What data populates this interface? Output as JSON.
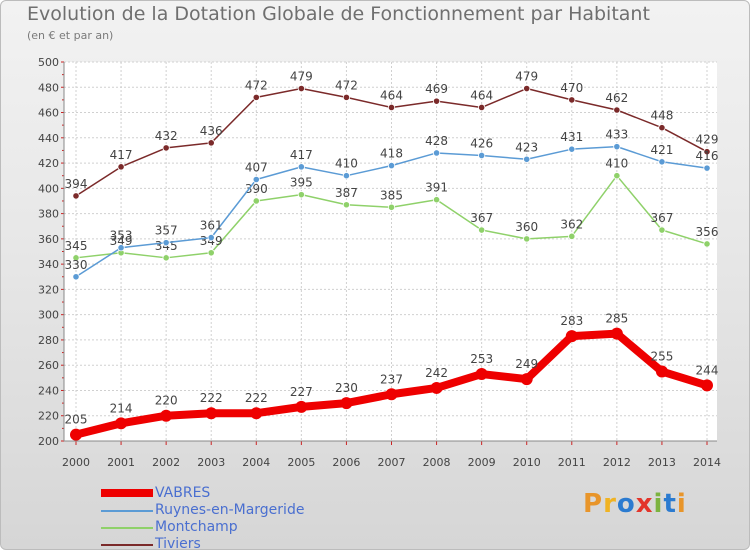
{
  "title": "Evolution de la Dotation Globale de Fonctionnement par Habitant",
  "subtitle": "(en € et par an)",
  "logo": {
    "text": "Proxiti",
    "colors": [
      "#e8952a",
      "#f0b323",
      "#2b7bd0",
      "#e3352b",
      "#7cb340",
      "#2b7bd0",
      "#e8952a"
    ]
  },
  "chart_data": {
    "type": "line",
    "title": "Evolution de la Dotation Globale de Fonctionnement par Habitant",
    "subtitle": "(en € et par an)",
    "xlabel": "",
    "ylabel": "",
    "ylim": [
      200,
      500
    ],
    "y_ticks": [
      200,
      220,
      240,
      260,
      280,
      300,
      320,
      340,
      360,
      380,
      400,
      420,
      440,
      460,
      480,
      500
    ],
    "categories": [
      "2000",
      "2001",
      "2002",
      "2003",
      "2004",
      "2005",
      "2006",
      "2007",
      "2008",
      "2009",
      "2010",
      "2011",
      "2012",
      "2013",
      "2014"
    ],
    "series": [
      {
        "name": "Tiviers",
        "color": "#7b2a2a",
        "values": [
          394,
          417,
          432,
          436,
          472,
          479,
          472,
          464,
          469,
          464,
          479,
          470,
          462,
          448,
          429
        ]
      },
      {
        "name": "Montchamp",
        "color": "#8fd16a",
        "values": [
          345,
          349,
          345,
          349,
          390,
          395,
          387,
          385,
          391,
          367,
          360,
          362,
          410,
          367,
          356
        ]
      },
      {
        "name": "Ruynes-en-Margeride",
        "color": "#5b9bd5",
        "values": [
          330,
          353,
          357,
          361,
          407,
          417,
          410,
          418,
          428,
          426,
          423,
          431,
          433,
          421,
          416
        ]
      },
      {
        "name": "VABRES",
        "color": "#ee0000",
        "values": [
          205,
          214,
          220,
          222,
          222,
          227,
          230,
          237,
          242,
          253,
          249,
          283,
          285,
          255,
          244
        ]
      }
    ],
    "legend": [
      "VABRES",
      "Ruynes-en-Margeride",
      "Montchamp",
      "Tiviers"
    ],
    "legend_position": "bottom-left"
  }
}
